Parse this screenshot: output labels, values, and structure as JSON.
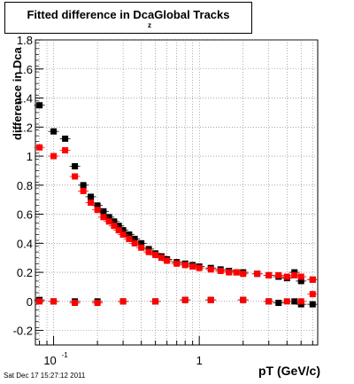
{
  "chart_data": {
    "type": "scatter",
    "title": "Fitted difference in Dca",
    "title_subscript": "z",
    "title_suffix": "Global Tracks",
    "ylabel": "difference in Dca",
    "xlabel": "pT (GeV/c)",
    "x_scale": "log",
    "xlim": [
      0.075,
      6.5
    ],
    "ylim": [
      -0.3,
      1.8
    ],
    "grid": true,
    "y_ticks": [
      "-0.2",
      "0",
      "0.2",
      "0.4",
      "0.6",
      "0.8",
      "1",
      "1.2",
      "1.4",
      "1.6",
      "1.8"
    ],
    "x_ticks": [
      "10",
      "1"
    ],
    "x_tick_exponent": "-1",
    "series": [
      {
        "color": "#000000",
        "points": [
          [
            0.08,
            1.35
          ],
          [
            0.1,
            1.17
          ],
          [
            0.12,
            1.12
          ],
          [
            0.14,
            0.93
          ],
          [
            0.16,
            0.8
          ],
          [
            0.18,
            0.72
          ],
          [
            0.2,
            0.66
          ],
          [
            0.22,
            0.62
          ],
          [
            0.24,
            0.58
          ],
          [
            0.26,
            0.55
          ],
          [
            0.28,
            0.52
          ],
          [
            0.3,
            0.49
          ],
          [
            0.33,
            0.46
          ],
          [
            0.36,
            0.43
          ],
          [
            0.4,
            0.4
          ],
          [
            0.45,
            0.36
          ],
          [
            0.5,
            0.33
          ],
          [
            0.55,
            0.31
          ],
          [
            0.6,
            0.29
          ],
          [
            0.7,
            0.27
          ],
          [
            0.8,
            0.26
          ],
          [
            0.9,
            0.25
          ],
          [
            1.0,
            0.24
          ],
          [
            1.2,
            0.23
          ],
          [
            1.4,
            0.22
          ],
          [
            1.6,
            0.21
          ],
          [
            1.8,
            0.2
          ],
          [
            2.0,
            0.2
          ],
          [
            2.5,
            0.19
          ],
          [
            3.0,
            0.18
          ],
          [
            3.5,
            0.17
          ],
          [
            4.0,
            0.16
          ],
          [
            4.5,
            0.2
          ],
          [
            5.0,
            0.14
          ],
          [
            6.0,
            0.15
          ],
          [
            0.08,
            0.01
          ],
          [
            0.1,
            0.0
          ],
          [
            0.14,
            0.0
          ],
          [
            0.2,
            0.0
          ],
          [
            0.3,
            0.0
          ],
          [
            0.5,
            0.0
          ],
          [
            0.8,
            0.01
          ],
          [
            1.2,
            0.01
          ],
          [
            2.0,
            0.01
          ],
          [
            3.0,
            0.0
          ],
          [
            3.5,
            -0.01
          ],
          [
            4.5,
            0.0
          ],
          [
            5.0,
            -0.02
          ],
          [
            6.0,
            -0.02
          ]
        ]
      },
      {
        "color": "#ff0000",
        "points": [
          [
            0.08,
            1.06
          ],
          [
            0.1,
            1.0
          ],
          [
            0.12,
            1.04
          ],
          [
            0.14,
            0.86
          ],
          [
            0.16,
            0.76
          ],
          [
            0.18,
            0.68
          ],
          [
            0.2,
            0.63
          ],
          [
            0.22,
            0.58
          ],
          [
            0.24,
            0.55
          ],
          [
            0.26,
            0.52
          ],
          [
            0.28,
            0.49
          ],
          [
            0.3,
            0.46
          ],
          [
            0.33,
            0.43
          ],
          [
            0.36,
            0.4
          ],
          [
            0.4,
            0.37
          ],
          [
            0.45,
            0.34
          ],
          [
            0.5,
            0.32
          ],
          [
            0.55,
            0.3
          ],
          [
            0.6,
            0.28
          ],
          [
            0.7,
            0.26
          ],
          [
            0.8,
            0.25
          ],
          [
            0.9,
            0.24
          ],
          [
            1.0,
            0.23
          ],
          [
            1.2,
            0.22
          ],
          [
            1.4,
            0.21
          ],
          [
            1.6,
            0.2
          ],
          [
            1.8,
            0.2
          ],
          [
            2.0,
            0.19
          ],
          [
            2.5,
            0.19
          ],
          [
            3.0,
            0.18
          ],
          [
            3.5,
            0.18
          ],
          [
            4.0,
            0.17
          ],
          [
            4.5,
            0.18
          ],
          [
            5.0,
            0.17
          ],
          [
            6.0,
            0.15
          ],
          [
            0.08,
            0.0
          ],
          [
            0.1,
            0.0
          ],
          [
            0.14,
            -0.01
          ],
          [
            0.2,
            -0.01
          ],
          [
            0.3,
            0.0
          ],
          [
            0.5,
            0.0
          ],
          [
            0.8,
            0.01
          ],
          [
            1.2,
            0.01
          ],
          [
            2.0,
            0.01
          ],
          [
            3.0,
            0.0
          ],
          [
            4.0,
            0.0
          ],
          [
            5.0,
            0.0
          ],
          [
            6.0,
            0.05
          ]
        ]
      }
    ]
  },
  "footer": "Sat Dec 17 15:27:12 2011"
}
